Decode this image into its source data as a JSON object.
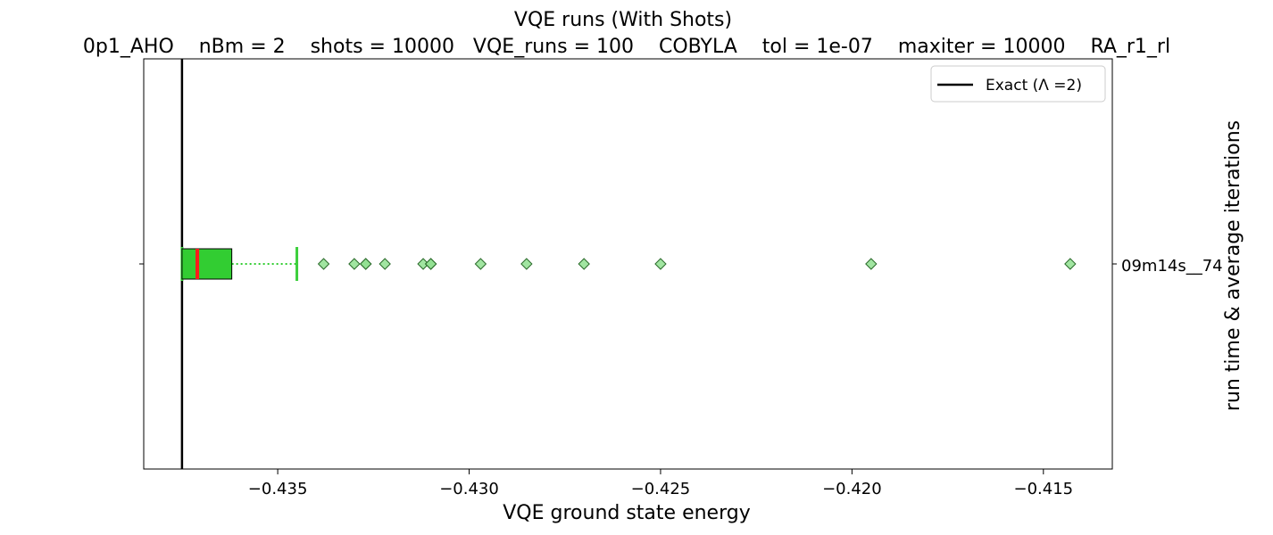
{
  "chart_data": {
    "type": "boxplot",
    "orientation": "horizontal",
    "title": "VQE runs (With Shots)",
    "subtitle": "0p1_AHO    nBm = 2    shots = 10000   VQE_runs = 100    COBYLA    tol = 1e-07    maxiter = 10000    RA_r1_rl",
    "xlabel": "VQE ground state energy",
    "ylabel_right": "run time & average iterations",
    "xlim": [
      -0.4385,
      -0.4132
    ],
    "x_ticks": [
      -0.435,
      -0.43,
      -0.425,
      -0.42,
      -0.415
    ],
    "x_tick_labels": [
      "−0.435",
      "−0.430",
      "−0.425",
      "−0.420",
      "−0.415"
    ],
    "category_label": "09m14s__74",
    "box": {
      "whisker_low": -0.4375,
      "q1": -0.4375,
      "median": -0.4371,
      "q3": -0.4362,
      "whisker_high": -0.4345
    },
    "outliers": [
      -0.4338,
      -0.433,
      -0.4327,
      -0.4327,
      -0.4322,
      -0.4312,
      -0.431,
      -0.431,
      -0.4297,
      -0.4285,
      -0.427,
      -0.425,
      -0.4195,
      -0.4143
    ],
    "exact_value": -0.4375,
    "legend": {
      "label": "Exact (Λ =2)",
      "position": "upper-right"
    },
    "grid": false,
    "colors": {
      "box_fill": "#32cd32",
      "median": "#ff1a1a",
      "whisker": "#32cd32",
      "cap": "#3ccf3c",
      "outlier_fill": "#90e090",
      "exact_line": "#000000"
    }
  }
}
